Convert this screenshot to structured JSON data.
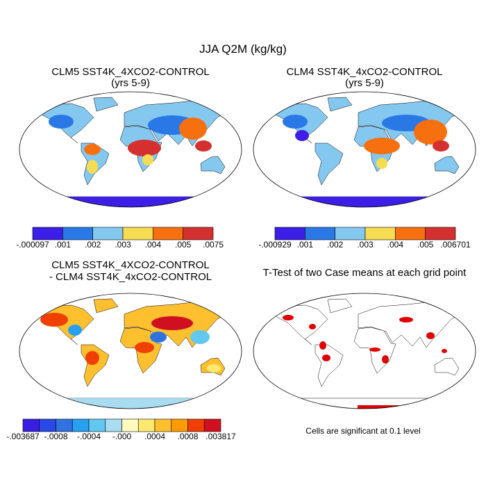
{
  "title": "JJA Q2M (kg/kg)",
  "panels": [
    {
      "title": [
        "CLM5 SST4K_4XCO2-CONTROL",
        "(yrs 5-9)"
      ],
      "colorbar": {
        "colors": [
          "#3c1ee6",
          "#2a78e6",
          "#84c8f0",
          "#f6dc52",
          "#f77010",
          "#d43030"
        ],
        "labels": [
          "-.000097",
          ".001",
          ".002",
          ".003",
          ".004",
          ".005",
          ".0075"
        ]
      }
    },
    {
      "title": [
        "CLM4 SST4K_4xCO2-CONTROL",
        "(yrs 5-9)"
      ],
      "colorbar": {
        "colors": [
          "#3c1ee6",
          "#2a78e6",
          "#84c8f0",
          "#f6dc52",
          "#f77010",
          "#d43030"
        ],
        "labels": [
          "-.000929",
          ".001",
          ".002",
          ".003",
          ".004",
          ".005",
          ".006701"
        ]
      }
    },
    {
      "title": [
        "CLM5 SST4K_4XCO2-CONTROL",
        "- CLM4 SST4K_4xCO2-CONTROL"
      ],
      "colorbar": {
        "colors": [
          "#3a1ee0",
          "#2a48e8",
          "#3072e0",
          "#28a0f0",
          "#62c8f0",
          "#a8dcf0",
          "#fffbc0",
          "#ffe870",
          "#ffc030",
          "#ff9a00",
          "#f04000",
          "#d01020"
        ],
        "labels": [
          "-.003687",
          "-.0008",
          "-.0004",
          "-.000",
          ".0004",
          ".0008",
          ".003817"
        ]
      }
    },
    {
      "title": [
        "T-Test of two Case means at each grid point"
      ],
      "footnote": "Cells are significant at 0.1 level"
    }
  ]
}
